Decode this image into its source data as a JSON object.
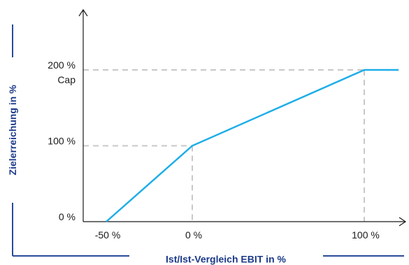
{
  "chart_data": {
    "type": "line",
    "xlabel": "Ist/Ist-Vergleich EBIT in %",
    "ylabel": "Zielerreichung in %",
    "x_ticks": [
      "-50 %",
      "0 %",
      "100 %"
    ],
    "y_ticks": [
      "0 %",
      "100 %",
      "200 %"
    ],
    "cap_label": "Cap",
    "series": [
      {
        "x": [
          -50,
          0,
          100,
          120
        ],
        "y": [
          0,
          100,
          200,
          200
        ]
      }
    ],
    "reference_lines": [
      {
        "x": 0,
        "y": 100
      },
      {
        "x": 100,
        "y": 200
      }
    ],
    "xlim": [
      -60,
      120
    ],
    "ylim": [
      0,
      270
    ],
    "grid": false,
    "colors": {
      "line": "#1eaee8",
      "axis": "#1a1a1a",
      "dashes": "#c8c8c8",
      "title": "#1c3a8a",
      "frame_line": "#2a4a9a"
    }
  }
}
